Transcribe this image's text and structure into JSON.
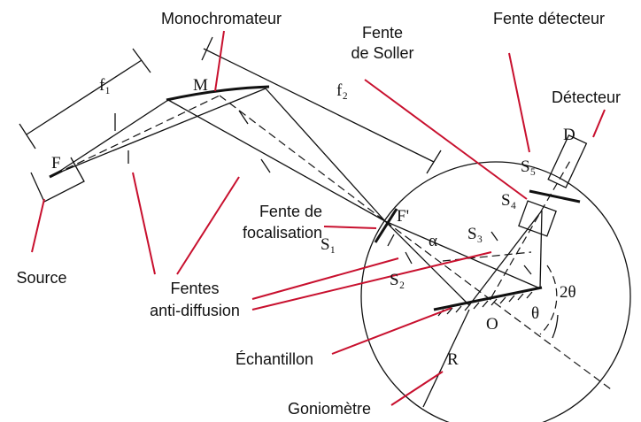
{
  "labels": {
    "monochromateur": "Monochromateur",
    "fente_soller": [
      "Fente",
      "de Soller"
    ],
    "fente_detecteur": "Fente détecteur",
    "detecteur": "Détecteur",
    "source": "Source",
    "fente_focalisation": [
      "Fente de",
      "focalisation"
    ],
    "fentes_anti_diffusion": [
      "Fentes",
      "anti-diffusion"
    ],
    "echantillon": "Échantillon",
    "goniometre": "Goniomètre"
  },
  "symbols": {
    "f1": "f₁",
    "f2": "f₂",
    "M": "M",
    "F": "F",
    "F_prime": "F'",
    "alpha": "α",
    "S1": "S₁",
    "S2": "S₂",
    "S3": "S₃",
    "S4": "S₄",
    "S5": "S₅",
    "D": "D",
    "two_theta": "2θ",
    "theta": "θ",
    "O": "O",
    "R": "R"
  }
}
